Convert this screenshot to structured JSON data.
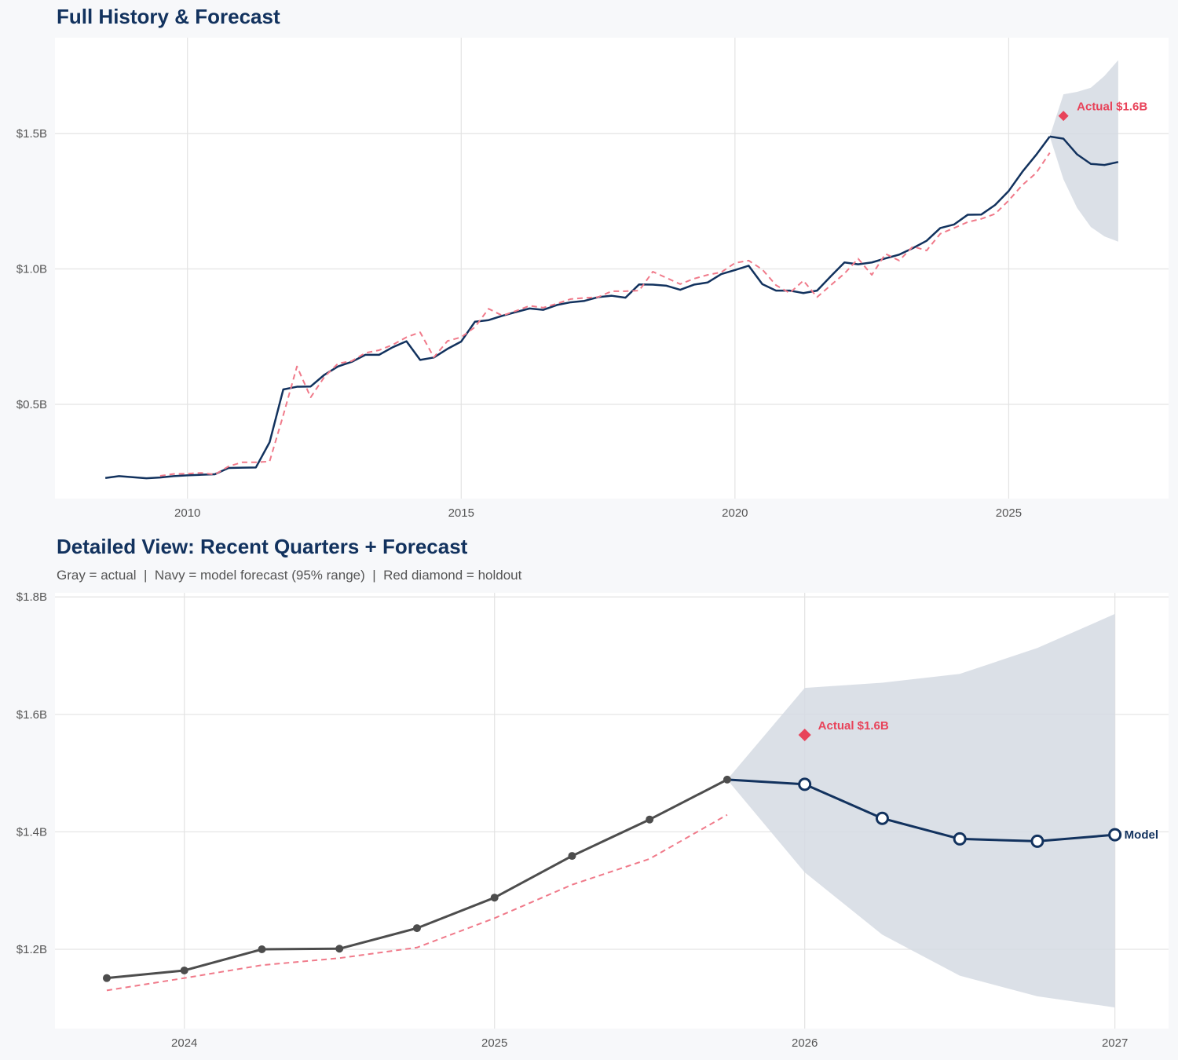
{
  "chart_data": [
    {
      "type": "line",
      "title": "Full History & Forecast",
      "xlim": [
        2007.58,
        2027.92
      ],
      "ylim": [
        0.152,
        1.854
      ],
      "grid": true,
      "x_ticks": [
        2010,
        2015,
        2020,
        2025
      ],
      "x_tick_labels": [
        "2010",
        "2015",
        "2020",
        "2025"
      ],
      "y_ticks": [
        0.5,
        1.0,
        1.5
      ],
      "y_tick_labels": [
        "$0.5B",
        "$1.0B",
        "$1.5B"
      ],
      "series": [
        {
          "role": "actual",
          "color": "#12325e",
          "style": "solid",
          "x": [
            2008.5,
            2008.75,
            2009,
            2009.25,
            2009.5,
            2009.75,
            2010,
            2010.25,
            2010.5,
            2010.75,
            2011,
            2011.25,
            2011.5,
            2011.75,
            2012,
            2012.25,
            2012.5,
            2012.75,
            2013,
            2013.25,
            2013.5,
            2013.75,
            2014,
            2014.25,
            2014.5,
            2014.75,
            2015,
            2015.25,
            2015.5,
            2015.75,
            2016,
            2016.25,
            2016.5,
            2016.75,
            2017,
            2017.25,
            2017.5,
            2017.75,
            2018,
            2018.25,
            2018.5,
            2018.75,
            2019,
            2019.25,
            2019.5,
            2019.75,
            2020,
            2020.25,
            2020.5,
            2020.75,
            2021,
            2021.25,
            2021.5,
            2021.75,
            2022,
            2022.25,
            2022.5,
            2022.75,
            2023,
            2023.25,
            2023.5,
            2023.75,
            2024,
            2024.25,
            2024.5,
            2024.75,
            2025,
            2025.25,
            2025.5,
            2025.75
          ],
          "y": [
            0.228,
            0.235,
            0.231,
            0.227,
            0.23,
            0.235,
            0.238,
            0.24,
            0.242,
            0.265,
            0.266,
            0.267,
            0.36,
            0.555,
            0.565,
            0.566,
            0.609,
            0.64,
            0.657,
            0.683,
            0.683,
            0.711,
            0.733,
            0.664,
            0.673,
            0.705,
            0.732,
            0.805,
            0.811,
            0.827,
            0.841,
            0.854,
            0.849,
            0.867,
            0.877,
            0.882,
            0.896,
            0.901,
            0.894,
            0.943,
            0.942,
            0.938,
            0.923,
            0.942,
            0.95,
            0.981,
            0.996,
            1.012,
            0.944,
            0.92,
            0.92,
            0.911,
            0.92,
            0.973,
            1.024,
            1.017,
            1.024,
            1.039,
            1.053,
            1.077,
            1.104,
            1.151,
            1.164,
            1.2,
            1.201,
            1.236,
            1.288,
            1.359,
            1.421,
            1.489
          ]
        },
        {
          "role": "fitted",
          "color": "#f07a8a",
          "style": "dashed",
          "x": [
            2009.5,
            2009.75,
            2010,
            2010.25,
            2010.5,
            2010.75,
            2011,
            2011.25,
            2011.5,
            2011.75,
            2012,
            2012.25,
            2012.5,
            2012.75,
            2013,
            2013.25,
            2013.5,
            2013.75,
            2014,
            2014.25,
            2014.5,
            2014.75,
            2015,
            2015.25,
            2015.5,
            2015.75,
            2016,
            2016.25,
            2016.5,
            2016.75,
            2017,
            2017.25,
            2017.5,
            2017.75,
            2018,
            2018.25,
            2018.5,
            2018.75,
            2019,
            2019.25,
            2019.5,
            2019.75,
            2020,
            2020.25,
            2020.5,
            2020.75,
            2021,
            2021.25,
            2021.5,
            2021.75,
            2022,
            2022.25,
            2022.5,
            2022.75,
            2023,
            2023.25,
            2023.5,
            2023.75,
            2024,
            2024.25,
            2024.5,
            2024.75,
            2025,
            2025.25,
            2025.5,
            2025.75
          ],
          "y": [
            0.236,
            0.243,
            0.244,
            0.247,
            0.241,
            0.271,
            0.286,
            0.286,
            0.289,
            0.46,
            0.64,
            0.526,
            0.601,
            0.651,
            0.66,
            0.69,
            0.7,
            0.72,
            0.748,
            0.766,
            0.674,
            0.734,
            0.748,
            0.785,
            0.853,
            0.828,
            0.845,
            0.864,
            0.857,
            0.872,
            0.889,
            0.893,
            0.896,
            0.918,
            0.918,
            0.92,
            0.99,
            0.967,
            0.944,
            0.964,
            0.978,
            0.988,
            1.022,
            1.031,
            0.998,
            0.94,
            0.911,
            0.957,
            0.896,
            0.94,
            0.983,
            1.038,
            0.978,
            1.056,
            1.031,
            1.083,
            1.068,
            1.13,
            1.151,
            1.173,
            1.185,
            1.203,
            1.253,
            1.31,
            1.354,
            1.429
          ]
        },
        {
          "role": "forecast",
          "color": "#12325e",
          "style": "solid",
          "x": [
            2025.75,
            2026,
            2026.25,
            2026.5,
            2026.75,
            2027
          ],
          "y": [
            1.489,
            1.481,
            1.423,
            1.388,
            1.384,
            1.395
          ]
        }
      ],
      "band": {
        "color": "#d5dbe3",
        "x": [
          2025.75,
          2026,
          2026.25,
          2026.5,
          2026.75,
          2027
        ],
        "lower": [
          1.489,
          1.331,
          1.225,
          1.155,
          1.12,
          1.101
        ],
        "upper": [
          1.489,
          1.645,
          1.654,
          1.669,
          1.713,
          1.771
        ]
      },
      "holdout": {
        "x": 2026,
        "y": 1.565,
        "color": "#e8435a",
        "label": "Actual $1.6B"
      }
    },
    {
      "type": "line",
      "title": "Detailed View: Recent Quarters + Forecast",
      "subtitle": "Gray = actual  |  Navy = model forecast (95% range)  |  Red diamond = holdout",
      "xlim": [
        2023.583,
        2027.173
      ],
      "ylim": [
        1.065,
        1.807
      ],
      "grid": true,
      "x_ticks": [
        2024,
        2025,
        2026,
        2027
      ],
      "x_tick_labels": [
        "2024",
        "2025",
        "2026",
        "2027"
      ],
      "y_ticks": [
        1.2,
        1.4,
        1.6,
        1.8
      ],
      "y_tick_labels": [
        "$1.2B",
        "$1.4B",
        "$1.6B",
        "$1.8B"
      ],
      "series": [
        {
          "role": "fitted",
          "color": "#f07a8a",
          "style": "dashed",
          "x": [
            2023.75,
            2024,
            2024.25,
            2024.5,
            2024.75,
            2025,
            2025.25,
            2025.5,
            2025.75
          ],
          "y": [
            1.13,
            1.151,
            1.173,
            1.185,
            1.203,
            1.253,
            1.31,
            1.354,
            1.429
          ]
        },
        {
          "role": "actual",
          "color": "#4d4d4d",
          "style": "solid",
          "markers": "filled",
          "x": [
            2023.75,
            2024,
            2024.25,
            2024.5,
            2024.75,
            2025,
            2025.25,
            2025.5,
            2025.75
          ],
          "y": [
            1.151,
            1.164,
            1.2,
            1.201,
            1.236,
            1.288,
            1.359,
            1.421,
            1.489
          ]
        },
        {
          "role": "forecast",
          "color": "#12325e",
          "style": "solid",
          "markers": "open",
          "name": "Model",
          "x": [
            2025.75,
            2026,
            2026.25,
            2026.5,
            2026.75,
            2027
          ],
          "y": [
            1.489,
            1.481,
            1.423,
            1.388,
            1.384,
            1.395
          ]
        }
      ],
      "band": {
        "color": "#d5dbe3",
        "x": [
          2025.75,
          2026,
          2026.25,
          2026.5,
          2026.75,
          2027
        ],
        "lower": [
          1.489,
          1.331,
          1.225,
          1.155,
          1.12,
          1.101
        ],
        "upper": [
          1.489,
          1.645,
          1.654,
          1.669,
          1.713,
          1.771
        ]
      },
      "holdout": {
        "x": 2026,
        "y": 1.565,
        "color": "#e8435a",
        "label": "Actual $1.6B"
      }
    }
  ]
}
